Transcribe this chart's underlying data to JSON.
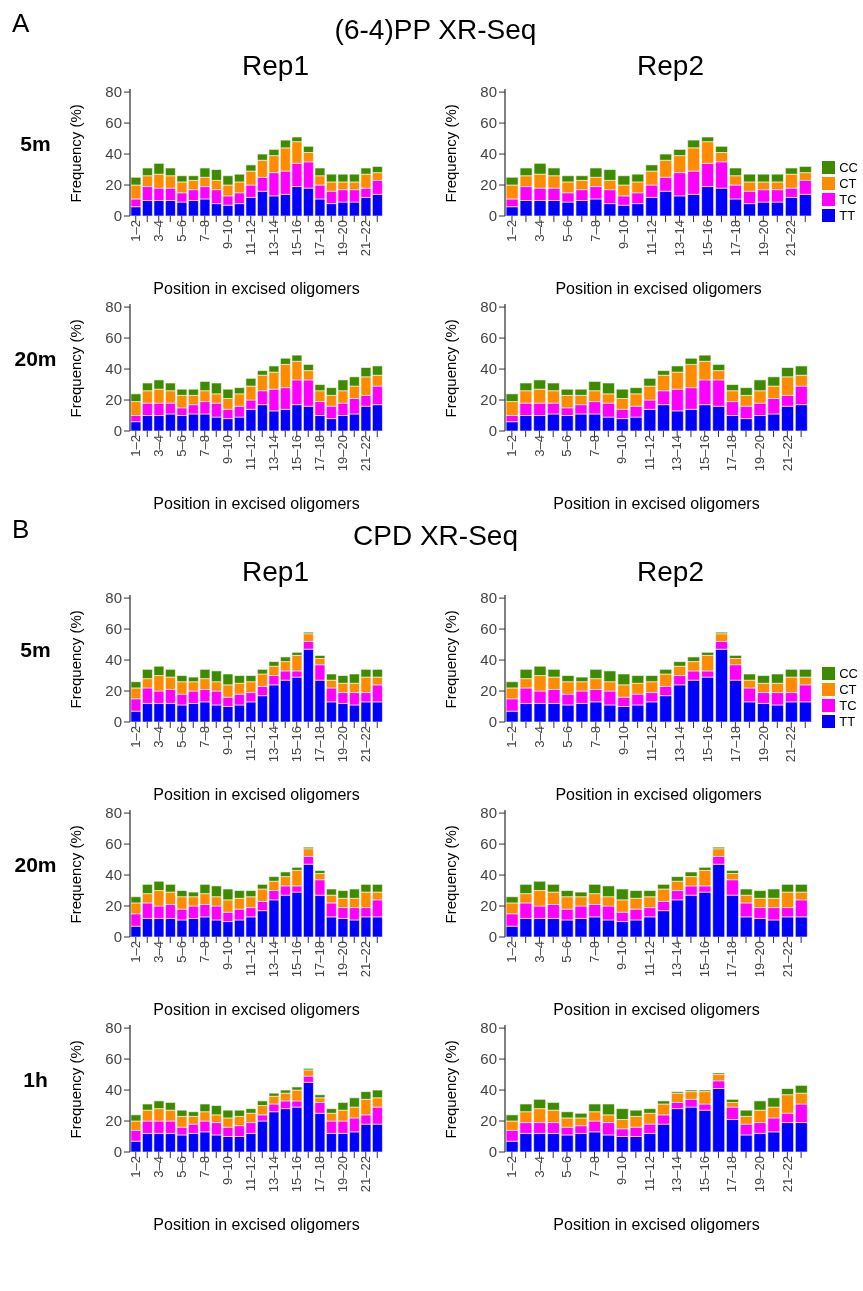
{
  "chart_data": [
    {
      "type": "bar",
      "stacked": true,
      "title": "Rep1",
      "annotations": [
        "A",
        "(6-4)PP XR-Seq",
        "5m"
      ],
      "xlabel": "Position in excised oligomers",
      "ylabel": "Frequency (%)",
      "ylim": [
        0,
        82
      ],
      "yticks": [
        0,
        20,
        40,
        60,
        80
      ],
      "categories": [
        "1–2",
        null,
        "3–4",
        null,
        "5–6",
        null,
        "7–8",
        null,
        "9–10",
        null,
        "11–12",
        null,
        "13–14",
        null,
        "15–16",
        null,
        "17–18",
        null,
        "19–20",
        null,
        "21–22",
        null
      ],
      "series": [
        {
          "color": "#0000ff",
          "values": [
            6,
            10,
            10,
            10,
            9,
            10,
            11,
            8,
            7,
            8,
            12,
            16,
            13,
            14,
            19,
            18,
            11,
            8,
            9,
            9,
            12,
            14
          ]
        },
        {
          "color": "#ff00ff",
          "values": [
            5,
            9,
            8,
            8,
            6,
            7,
            8,
            9,
            6,
            7,
            8,
            9,
            15,
            15,
            15,
            17,
            9,
            8,
            8,
            8,
            6,
            9
          ]
        },
        {
          "color": "#ff8c00",
          "values": [
            9,
            7,
            9,
            8,
            7,
            6,
            6,
            6,
            7,
            7,
            9,
            11,
            11,
            15,
            14,
            6,
            6,
            6,
            5,
            5,
            9,
            5
          ]
        },
        {
          "color": "#3d8c00",
          "values": [
            5,
            5,
            7,
            5,
            4,
            3,
            6,
            7,
            6,
            5,
            4,
            4,
            4,
            5,
            3,
            4,
            5,
            5,
            5,
            5,
            4,
            4
          ]
        }
      ]
    },
    {
      "type": "bar",
      "stacked": true,
      "title": "Rep2",
      "legend": "right",
      "xlabel": "Position in excised oligomers",
      "ylabel": "Frequency (%)",
      "ylim": [
        0,
        82
      ],
      "yticks": [
        0,
        20,
        40,
        60,
        80
      ],
      "categories": [
        "1–2",
        null,
        "3–4",
        null,
        "5–6",
        null,
        "7–8",
        null,
        "9–10",
        null,
        "11–12",
        null,
        "13–14",
        null,
        "15–16",
        null,
        "17–18",
        null,
        "19–20",
        null,
        "21–22",
        null
      ],
      "series": [
        {
          "name": "TT",
          "color": "#0000ff",
          "values": [
            6,
            10,
            10,
            10,
            9,
            10,
            11,
            8,
            7,
            8,
            12,
            16,
            13,
            14,
            19,
            18,
            11,
            8,
            9,
            9,
            12,
            14
          ]
        },
        {
          "name": "TC",
          "color": "#ff00ff",
          "values": [
            5,
            9,
            8,
            8,
            6,
            7,
            8,
            9,
            6,
            7,
            8,
            9,
            15,
            15,
            15,
            17,
            9,
            8,
            8,
            8,
            6,
            9
          ]
        },
        {
          "name": "CT",
          "color": "#ff8c00",
          "values": [
            9,
            7,
            9,
            8,
            7,
            6,
            6,
            6,
            7,
            7,
            9,
            11,
            11,
            15,
            14,
            6,
            6,
            6,
            5,
            5,
            9,
            5
          ]
        },
        {
          "name": "CC",
          "color": "#3d8c00",
          "values": [
            5,
            5,
            7,
            5,
            4,
            3,
            6,
            7,
            6,
            5,
            4,
            4,
            4,
            5,
            3,
            4,
            5,
            5,
            5,
            5,
            4,
            4
          ]
        }
      ]
    },
    {
      "type": "bar",
      "stacked": true,
      "annotations": [
        "20m"
      ],
      "xlabel": "Position in excised oligomers",
      "ylabel": "Frequency (%)",
      "ylim": [
        0,
        82
      ],
      "yticks": [
        0,
        20,
        40,
        60,
        80
      ],
      "categories": [
        "1–2",
        null,
        "3–4",
        null,
        "5–6",
        null,
        "7–8",
        null,
        "9–10",
        null,
        "11–12",
        null,
        "13–14",
        null,
        "15–16",
        null,
        "17–18",
        null,
        "19–20",
        null,
        "21–22",
        null
      ],
      "series": [
        {
          "color": "#0000ff",
          "values": [
            6,
            10,
            10,
            11,
            10,
            11,
            11,
            9,
            8,
            9,
            14,
            17,
            13,
            14,
            17,
            16,
            10,
            8,
            10,
            11,
            16,
            17
          ]
        },
        {
          "color": "#ff00ff",
          "values": [
            4,
            8,
            8,
            7,
            5,
            6,
            8,
            9,
            6,
            7,
            6,
            9,
            14,
            14,
            16,
            17,
            9,
            8,
            8,
            10,
            7,
            12
          ]
        },
        {
          "color": "#ff8c00",
          "values": [
            9,
            8,
            9,
            8,
            8,
            6,
            7,
            6,
            7,
            8,
            9,
            10,
            11,
            15,
            12,
            6,
            7,
            7,
            8,
            8,
            12,
            7
          ]
        },
        {
          "color": "#3d8c00",
          "values": [
            5,
            5,
            6,
            5,
            4,
            4,
            6,
            7,
            6,
            4,
            5,
            3,
            4,
            4,
            4,
            4,
            4,
            5,
            7,
            6,
            6,
            6
          ]
        }
      ]
    },
    {
      "type": "bar",
      "stacked": true,
      "xlabel": "Position in excised oligomers",
      "ylabel": "Frequency (%)",
      "ylim": [
        0,
        82
      ],
      "yticks": [
        0,
        20,
        40,
        60,
        80
      ],
      "categories": [
        "1–2",
        null,
        "3–4",
        null,
        "5–6",
        null,
        "7–8",
        null,
        "9–10",
        null,
        "11–12",
        null,
        "13–14",
        null,
        "15–16",
        null,
        "17–18",
        null,
        "19–20",
        null,
        "21–22",
        null
      ],
      "series": [
        {
          "color": "#0000ff",
          "values": [
            6,
            10,
            10,
            11,
            10,
            11,
            11,
            9,
            8,
            9,
            14,
            17,
            13,
            14,
            17,
            16,
            10,
            8,
            10,
            11,
            16,
            17
          ]
        },
        {
          "color": "#ff00ff",
          "values": [
            4,
            8,
            8,
            7,
            5,
            6,
            8,
            9,
            6,
            7,
            6,
            9,
            14,
            14,
            16,
            17,
            9,
            8,
            8,
            10,
            7,
            12
          ]
        },
        {
          "color": "#ff8c00",
          "values": [
            9,
            8,
            9,
            8,
            8,
            6,
            7,
            6,
            7,
            8,
            9,
            10,
            11,
            15,
            12,
            6,
            7,
            7,
            8,
            8,
            12,
            7
          ]
        },
        {
          "color": "#3d8c00",
          "values": [
            5,
            5,
            6,
            5,
            4,
            4,
            6,
            7,
            6,
            4,
            5,
            3,
            4,
            4,
            4,
            4,
            4,
            5,
            7,
            6,
            6,
            6
          ]
        }
      ]
    },
    {
      "type": "bar",
      "stacked": true,
      "title": "Rep1",
      "annotations": [
        "B",
        "CPD XR-Seq",
        "5m"
      ],
      "xlabel": "Position in excised oligomers",
      "ylabel": "Frequency (%)",
      "ylim": [
        0,
        82
      ],
      "yticks": [
        0,
        20,
        40,
        60,
        80
      ],
      "categories": [
        "1–2",
        null,
        "3–4",
        null,
        "5–6",
        null,
        "7–8",
        null,
        "9–10",
        null,
        "11–12",
        null,
        "13–14",
        null,
        "15–16",
        null,
        "17–18",
        null,
        "19–20",
        null,
        "21–22",
        null
      ],
      "series": [
        {
          "color": "#0000ff",
          "values": [
            7,
            12,
            12,
            12,
            11,
            12,
            13,
            11,
            10,
            11,
            13,
            17,
            24,
            27,
            29,
            47,
            27,
            13,
            12,
            11,
            13,
            13
          ]
        },
        {
          "color": "#ff00ff",
          "values": [
            8,
            10,
            8,
            9,
            7,
            8,
            8,
            9,
            6,
            7,
            6,
            6,
            6,
            6,
            4,
            5,
            10,
            9,
            7,
            8,
            6,
            11
          ]
        },
        {
          "color": "#ff8c00",
          "values": [
            7,
            6,
            10,
            8,
            8,
            6,
            7,
            6,
            8,
            7,
            7,
            8,
            6,
            6,
            10,
            5,
            4,
            5,
            6,
            6,
            10,
            5
          ]
        },
        {
          "color": "#3d8c00",
          "values": [
            4,
            6,
            6,
            5,
            4,
            3,
            6,
            7,
            7,
            5,
            4,
            3,
            3,
            3,
            2,
            1,
            2,
            4,
            5,
            6,
            5,
            5
          ]
        }
      ]
    },
    {
      "type": "bar",
      "stacked": true,
      "title": "Rep2",
      "legend": "right",
      "xlabel": "Position in excised oligomers",
      "ylabel": "Frequency (%)",
      "ylim": [
        0,
        82
      ],
      "yticks": [
        0,
        20,
        40,
        60,
        80
      ],
      "categories": [
        "1–2",
        null,
        "3–4",
        null,
        "5–6",
        null,
        "7–8",
        null,
        "9–10",
        null,
        "11–12",
        null,
        "13–14",
        null,
        "15–16",
        null,
        "17–18",
        null,
        "19–20",
        null,
        "21–22",
        null
      ],
      "series": [
        {
          "name": "TT",
          "color": "#0000ff",
          "values": [
            7,
            12,
            12,
            12,
            11,
            12,
            13,
            11,
            10,
            11,
            13,
            17,
            24,
            27,
            29,
            47,
            27,
            13,
            12,
            11,
            13,
            13
          ]
        },
        {
          "name": "TC",
          "color": "#ff00ff",
          "values": [
            8,
            10,
            8,
            9,
            7,
            8,
            8,
            9,
            6,
            7,
            6,
            6,
            6,
            6,
            4,
            5,
            10,
            9,
            7,
            8,
            6,
            11
          ]
        },
        {
          "name": "CT",
          "color": "#ff8c00",
          "values": [
            7,
            6,
            10,
            8,
            8,
            6,
            7,
            6,
            8,
            7,
            7,
            8,
            6,
            6,
            10,
            5,
            4,
            5,
            6,
            6,
            10,
            5
          ]
        },
        {
          "name": "CC",
          "color": "#3d8c00",
          "values": [
            4,
            6,
            6,
            5,
            4,
            3,
            6,
            7,
            7,
            5,
            4,
            3,
            3,
            3,
            2,
            1,
            2,
            4,
            5,
            6,
            5,
            5
          ]
        }
      ]
    },
    {
      "type": "bar",
      "stacked": true,
      "annotations": [
        "20m"
      ],
      "xlabel": "Position in excised oligomers",
      "ylabel": "Frequency (%)",
      "ylim": [
        0,
        82
      ],
      "yticks": [
        0,
        20,
        40,
        60,
        80
      ],
      "categories": [
        "1–2",
        null,
        "3–4",
        null,
        "5–6",
        null,
        "7–8",
        null,
        "9–10",
        null,
        "11–12",
        null,
        "13–14",
        null,
        "15–16",
        null,
        "17–18",
        null,
        "19–20",
        null,
        "21–22",
        null
      ],
      "series": [
        {
          "color": "#0000ff",
          "values": [
            7,
            12,
            12,
            12,
            11,
            12,
            13,
            11,
            10,
            11,
            13,
            17,
            24,
            27,
            29,
            47,
            27,
            13,
            12,
            11,
            13,
            13
          ]
        },
        {
          "color": "#ff00ff",
          "values": [
            8,
            10,
            8,
            9,
            7,
            8,
            8,
            9,
            6,
            7,
            6,
            6,
            6,
            6,
            4,
            5,
            10,
            9,
            7,
            8,
            6,
            11
          ]
        },
        {
          "color": "#ff8c00",
          "values": [
            7,
            6,
            10,
            8,
            8,
            6,
            7,
            6,
            8,
            7,
            7,
            8,
            6,
            6,
            10,
            5,
            4,
            5,
            6,
            6,
            10,
            5
          ]
        },
        {
          "color": "#3d8c00",
          "values": [
            4,
            6,
            6,
            5,
            4,
            3,
            6,
            7,
            7,
            5,
            4,
            3,
            3,
            3,
            2,
            1,
            2,
            4,
            5,
            6,
            5,
            5
          ]
        }
      ]
    },
    {
      "type": "bar",
      "stacked": true,
      "xlabel": "Position in excised oligomers",
      "ylabel": "Frequency (%)",
      "ylim": [
        0,
        82
      ],
      "yticks": [
        0,
        20,
        40,
        60,
        80
      ],
      "categories": [
        "1–2",
        null,
        "3–4",
        null,
        "5–6",
        null,
        "7–8",
        null,
        "9–10",
        null,
        "11–12",
        null,
        "13–14",
        null,
        "15–16",
        null,
        "17–18",
        null,
        "19–20",
        null,
        "21–22",
        null
      ],
      "series": [
        {
          "color": "#0000ff",
          "values": [
            7,
            12,
            12,
            12,
            11,
            12,
            13,
            11,
            10,
            11,
            13,
            17,
            24,
            27,
            29,
            47,
            27,
            13,
            12,
            11,
            13,
            13
          ]
        },
        {
          "color": "#ff00ff",
          "values": [
            8,
            10,
            8,
            9,
            7,
            8,
            8,
            9,
            6,
            7,
            6,
            6,
            6,
            6,
            4,
            5,
            10,
            9,
            7,
            8,
            6,
            11
          ]
        },
        {
          "color": "#ff8c00",
          "values": [
            7,
            6,
            10,
            8,
            8,
            6,
            7,
            6,
            8,
            7,
            7,
            8,
            6,
            6,
            10,
            5,
            4,
            5,
            6,
            6,
            10,
            5
          ]
        },
        {
          "color": "#3d8c00",
          "values": [
            4,
            6,
            6,
            5,
            4,
            3,
            6,
            7,
            7,
            5,
            4,
            3,
            3,
            3,
            2,
            1,
            2,
            4,
            5,
            6,
            5,
            5
          ]
        }
      ]
    },
    {
      "type": "bar",
      "stacked": true,
      "annotations": [
        "1h"
      ],
      "xlabel": "Position in excised oligomers",
      "ylabel": "Frequency (%)",
      "ylim": [
        0,
        82
      ],
      "yticks": [
        0,
        20,
        40,
        60,
        80
      ],
      "categories": [
        "1–2",
        null,
        "3–4",
        null,
        "5–6",
        null,
        "7–8",
        null,
        "9–10",
        null,
        "11–12",
        null,
        "13–14",
        null,
        "15–16",
        null,
        "17–18",
        null,
        "19–20",
        null,
        "21–22",
        null
      ],
      "series": [
        {
          "color": "#0000ff",
          "values": [
            7,
            12,
            12,
            12,
            11,
            12,
            13,
            11,
            10,
            10,
            12,
            20,
            26,
            28,
            29,
            45,
            25,
            12,
            12,
            13,
            18,
            18
          ]
        },
        {
          "color": "#ff00ff",
          "values": [
            7,
            8,
            8,
            8,
            5,
            6,
            7,
            8,
            6,
            7,
            7,
            4,
            5,
            5,
            4,
            4,
            7,
            8,
            8,
            9,
            6,
            11
          ]
        },
        {
          "color": "#ff8c00",
          "values": [
            6,
            7,
            8,
            7,
            7,
            5,
            6,
            5,
            6,
            6,
            6,
            6,
            5,
            5,
            7,
            4,
            3,
            5,
            7,
            7,
            10,
            6
          ]
        },
        {
          "color": "#3d8c00",
          "values": [
            4,
            4,
            5,
            5,
            4,
            3,
            5,
            6,
            5,
            4,
            3,
            3,
            2,
            2,
            2,
            1,
            2,
            3,
            5,
            6,
            5,
            5
          ]
        }
      ]
    },
    {
      "type": "bar",
      "stacked": true,
      "xlabel": "Position in excised oligomers",
      "ylabel": "Frequency (%)",
      "ylim": [
        0,
        82
      ],
      "yticks": [
        0,
        20,
        40,
        60,
        80
      ],
      "categories": [
        "1–2",
        null,
        "3–4",
        null,
        "5–6",
        null,
        "7–8",
        null,
        "9–10",
        null,
        "11–12",
        null,
        "13–14",
        null,
        "15–16",
        null,
        "17–18",
        null,
        "19–20",
        null,
        "21–22",
        null
      ],
      "series": [
        {
          "color": "#0000ff",
          "values": [
            7,
            12,
            12,
            12,
            11,
            12,
            13,
            11,
            10,
            10,
            12,
            18,
            28,
            29,
            27,
            41,
            21,
            11,
            12,
            13,
            19,
            19
          ]
        },
        {
          "color": "#ff00ff",
          "values": [
            7,
            7,
            7,
            7,
            5,
            5,
            7,
            8,
            5,
            6,
            6,
            6,
            4,
            5,
            4,
            5,
            8,
            7,
            7,
            9,
            6,
            12
          ]
        },
        {
          "color": "#ff8c00",
          "values": [
            6,
            7,
            9,
            8,
            6,
            5,
            6,
            5,
            6,
            7,
            7,
            7,
            6,
            5,
            8,
            4,
            3,
            5,
            8,
            7,
            12,
            7
          ]
        },
        {
          "color": "#3d8c00",
          "values": [
            4,
            5,
            6,
            5,
            4,
            3,
            5,
            7,
            7,
            4,
            3,
            2,
            1,
            1,
            1,
            1,
            2,
            4,
            6,
            6,
            4,
            5
          ]
        }
      ]
    }
  ]
}
